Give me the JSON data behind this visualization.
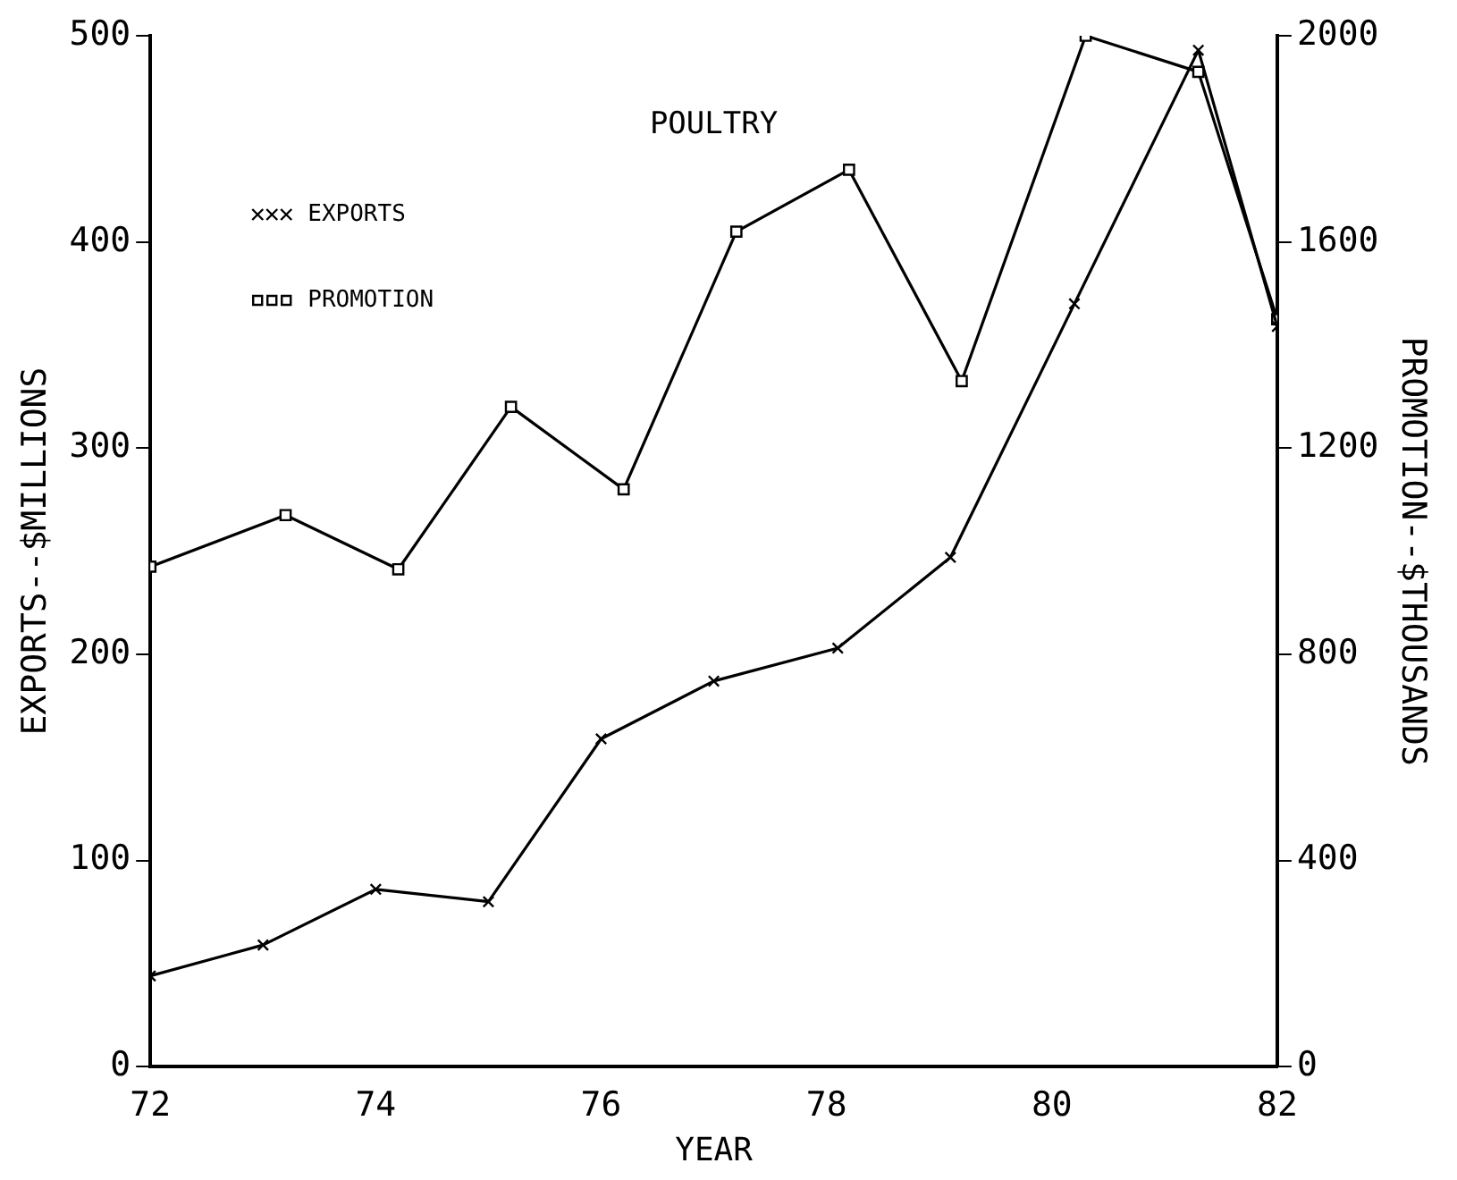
{
  "chart_data": {
    "type": "line",
    "title": "POULTRY",
    "xlabel": "YEAR",
    "ylabel": "EXPORTS--$MILLIONS",
    "y2label": "PROMOTION--$THOUSANDS",
    "xlim": [
      72,
      82
    ],
    "xticks": [
      72,
      74,
      76,
      78,
      80,
      82
    ],
    "ylim": [
      0,
      500
    ],
    "yticks": [
      0,
      100,
      200,
      300,
      400,
      500
    ],
    "y2lim": [
      0,
      2000
    ],
    "y2ticks": [
      0,
      400,
      800,
      1200,
      1600,
      2000
    ],
    "grid": false,
    "legend": "top left",
    "line_style": "solid",
    "series": [
      {
        "name": "EXPORTS",
        "color": "#000000",
        "marker": "cross",
        "x": [
          72,
          73,
          74,
          75,
          76,
          77,
          78.1,
          79.1,
          80.2,
          81.3,
          82
        ],
        "values": [
          44,
          59,
          86,
          80,
          159,
          187,
          203,
          247,
          370,
          493,
          359
        ]
      },
      {
        "name": "PROMOTION",
        "color": "#000000",
        "marker": "square",
        "axis": "y2",
        "x": [
          72,
          73.2,
          74.2,
          75.2,
          76.2,
          77.2,
          78.2,
          79.2,
          80.3,
          81.3,
          82
        ],
        "values": [
          970,
          1070,
          965,
          1280,
          1120,
          1620,
          1740,
          1330,
          2000,
          1930,
          1450
        ]
      }
    ]
  }
}
